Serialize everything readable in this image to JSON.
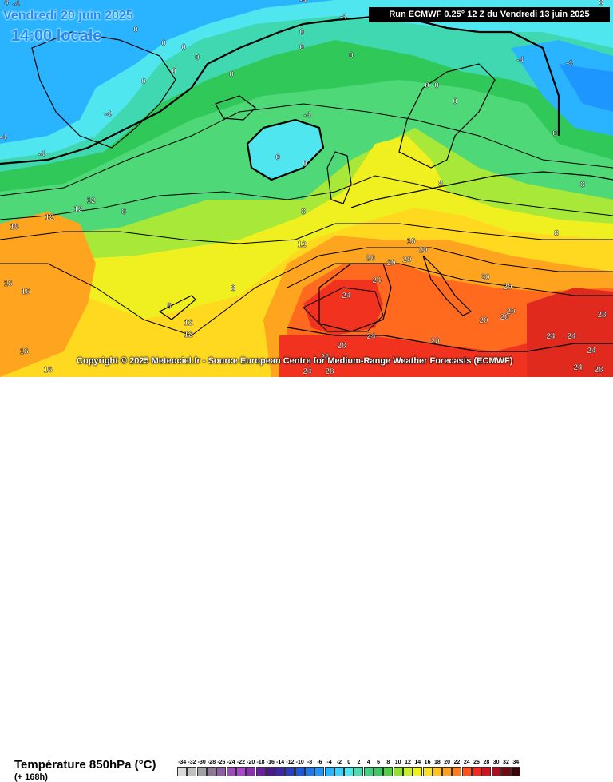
{
  "header": {
    "valid_date": "Vendredi 20 juin 2025",
    "valid_time": "14:00 locale",
    "run_info": "Run ECMWF 0.25° 12 Z du Vendredi 13 juin 2025"
  },
  "copyright": "Copyright © 2025 Meteociel.fr - Source European Centre for Medium-Range Weather Forecasts (ECMWF)",
  "footer": {
    "parameter": "Température 850hPa (°C)",
    "lead_time": "(+ 168h)"
  },
  "scale": {
    "labels": [
      "-34",
      "-32",
      "-30",
      "-28",
      "-26",
      "-24",
      "-22",
      "-20",
      "-18",
      "-16",
      "-14",
      "-12",
      "-10",
      "-8",
      "-6",
      "-4",
      "-2",
      "0",
      "2",
      "4",
      "6",
      "8",
      "10",
      "12",
      "14",
      "16",
      "18",
      "20",
      "22",
      "24",
      "26",
      "28",
      "30",
      "32",
      "34"
    ],
    "colors": [
      "#d9d9d9",
      "#bfbfbf",
      "#a0a0a0",
      "#8a7895",
      "#8e5fa0",
      "#9a4fb8",
      "#a848c8",
      "#8a30b0",
      "#6a20a0",
      "#4a1a8a",
      "#3a2aa8",
      "#2a40c0",
      "#1e5ad8",
      "#1a78f0",
      "#1e96ff",
      "#2ab4ff",
      "#3ad2ff",
      "#50e6f0",
      "#4cdcb0",
      "#40d080",
      "#3cc860",
      "#50d040",
      "#90e030",
      "#c8f028",
      "#f0f020",
      "#ffe020",
      "#ffc41e",
      "#ffa01e",
      "#ff7c1e",
      "#ff501e",
      "#f02a1e",
      "#d0141e",
      "#a8101e",
      "#700a10",
      "#3a0408"
    ]
  },
  "isotherm_labels": [
    {
      "text": "-4"
    },
    {
      "text": "-4"
    },
    {
      "text": "-4"
    },
    {
      "text": "-4"
    },
    {
      "text": "-4"
    },
    {
      "text": "-4"
    },
    {
      "text": "-4"
    },
    {
      "text": "-4"
    },
    {
      "text": "-4"
    },
    {
      "text": "0"
    },
    {
      "text": "0"
    },
    {
      "text": "0"
    },
    {
      "text": "0"
    },
    {
      "text": "0"
    },
    {
      "text": "0"
    },
    {
      "text": "0"
    },
    {
      "text": "0"
    },
    {
      "text": "0"
    },
    {
      "text": "0"
    },
    {
      "text": "0"
    },
    {
      "text": "0"
    },
    {
      "text": "0"
    },
    {
      "text": "0"
    },
    {
      "text": "0"
    },
    {
      "text": "0"
    },
    {
      "text": "4"
    },
    {
      "text": "8"
    },
    {
      "text": "8"
    },
    {
      "text": "8"
    },
    {
      "text": "8"
    },
    {
      "text": "8"
    },
    {
      "text": "8"
    },
    {
      "text": "8"
    },
    {
      "text": "8"
    },
    {
      "text": "12"
    },
    {
      "text": "12"
    },
    {
      "text": "12"
    },
    {
      "text": "12"
    },
    {
      "text": "12"
    },
    {
      "text": "12"
    },
    {
      "text": "16"
    },
    {
      "text": "16"
    },
    {
      "text": "16"
    },
    {
      "text": "16"
    },
    {
      "text": "16"
    },
    {
      "text": "16"
    },
    {
      "text": "20"
    },
    {
      "text": "20"
    },
    {
      "text": "20"
    },
    {
      "text": "20"
    },
    {
      "text": "20"
    },
    {
      "text": "20"
    },
    {
      "text": "20"
    },
    {
      "text": "20"
    },
    {
      "text": "20"
    },
    {
      "text": "20"
    },
    {
      "text": "24"
    },
    {
      "text": "24"
    },
    {
      "text": "24"
    },
    {
      "text": "24"
    },
    {
      "text": "24"
    },
    {
      "text": "24"
    },
    {
      "text": "24"
    },
    {
      "text": "24"
    },
    {
      "text": "28"
    },
    {
      "text": "28"
    },
    {
      "text": "28"
    },
    {
      "text": "28"
    },
    {
      "text": "28"
    },
    {
      "text": "-8"
    }
  ]
}
